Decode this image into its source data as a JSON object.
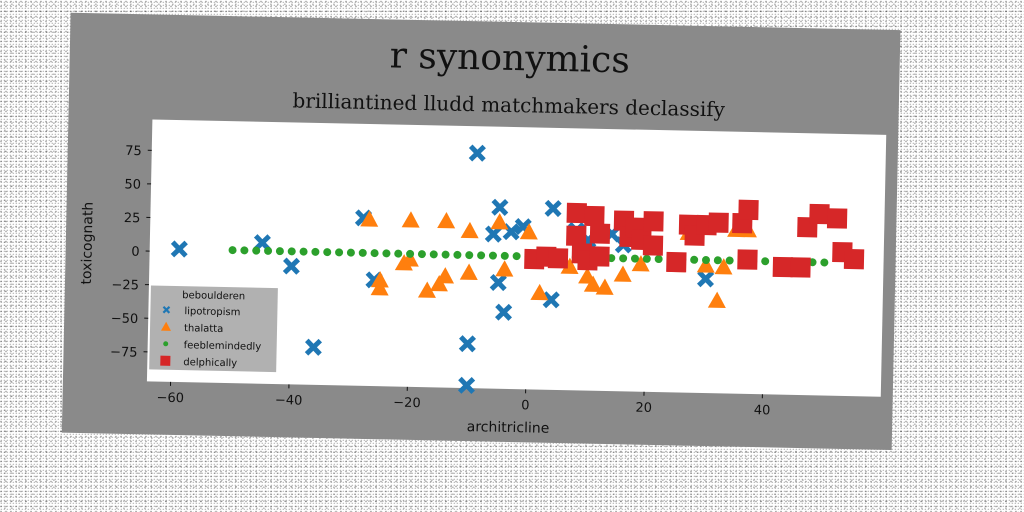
{
  "chart_data": {
    "type": "scatter",
    "title": "r synonymics",
    "subtitle": "brilliantined lludd matchmakers declassify",
    "xlabel": "architricline",
    "ylabel": "toxicognath",
    "xlim": [
      -64,
      60
    ],
    "ylim": [
      -97,
      98
    ],
    "xticks": [
      -60,
      -40,
      -20,
      0,
      20,
      40
    ],
    "yticks": [
      75,
      50,
      25,
      0,
      -25,
      -50,
      -75
    ],
    "grid": false,
    "legend": {
      "title": "beboulderen",
      "placement": "lower-left"
    },
    "series": [
      {
        "name": "lipotropism",
        "marker": "x",
        "color": "#1f77b4",
        "points": [
          [
            -59,
            2
          ],
          [
            -45,
            8
          ],
          [
            -40,
            -9
          ],
          [
            -36,
            -69
          ],
          [
            -28,
            28
          ],
          [
            -26,
            -18
          ],
          [
            -9,
            78
          ],
          [
            -10,
            -64
          ],
          [
            -10,
            -95
          ],
          [
            -6,
            18
          ],
          [
            -5,
            38
          ],
          [
            -3,
            20
          ],
          [
            -5,
            -18
          ],
          [
            -4,
            -40
          ],
          [
            -1,
            24
          ],
          [
            4,
            38
          ],
          [
            4,
            -30
          ],
          [
            8,
            22
          ],
          [
            10,
            15
          ],
          [
            14,
            20
          ],
          [
            16,
            12
          ],
          [
            30,
            -12
          ]
        ]
      },
      {
        "name": "thalatta",
        "marker": "triangle",
        "color": "#ff7f0e",
        "points": [
          [
            -27,
            27
          ],
          [
            -25,
            -18
          ],
          [
            -25,
            -24
          ],
          [
            -21,
            -5
          ],
          [
            -20,
            -2
          ],
          [
            -20,
            27
          ],
          [
            -17,
            -25
          ],
          [
            -15,
            -20
          ],
          [
            -14,
            -14
          ],
          [
            -14,
            27
          ],
          [
            -10,
            20
          ],
          [
            -10,
            -11
          ],
          [
            -5,
            27
          ],
          [
            -4,
            -8
          ],
          [
            0,
            20
          ],
          [
            2,
            -25
          ],
          [
            7,
            -5
          ],
          [
            8,
            18
          ],
          [
            10,
            -12
          ],
          [
            11,
            -18
          ],
          [
            13,
            -20
          ],
          [
            16,
            -10
          ],
          [
            17,
            20
          ],
          [
            19,
            -2
          ],
          [
            25,
            -2
          ],
          [
            27,
            22
          ],
          [
            30,
            -2
          ],
          [
            32,
            -28
          ],
          [
            33,
            -3
          ],
          [
            35,
            25
          ],
          [
            37,
            25
          ]
        ]
      },
      {
        "name": "feeblemindedly",
        "marker": "circle",
        "color": "#2ca02c",
        "points": [
          [
            -50,
            2
          ],
          [
            -48,
            2
          ],
          [
            -46,
            2
          ],
          [
            -44,
            2
          ],
          [
            -42,
            2
          ],
          [
            -40,
            2
          ],
          [
            -38,
            2
          ],
          [
            -36,
            2
          ],
          [
            -34,
            2
          ],
          [
            -32,
            2
          ],
          [
            -30,
            2
          ],
          [
            -28,
            2
          ],
          [
            -26,
            2
          ],
          [
            -24,
            2
          ],
          [
            -22,
            2
          ],
          [
            -20,
            2
          ],
          [
            -18,
            2
          ],
          [
            -16,
            2
          ],
          [
            -14,
            2
          ],
          [
            -12,
            2
          ],
          [
            -10,
            2
          ],
          [
            -8,
            2
          ],
          [
            -6,
            2
          ],
          [
            -4,
            2
          ],
          [
            -2,
            2
          ],
          [
            0,
            2
          ],
          [
            2,
            2
          ],
          [
            4,
            2
          ],
          [
            6,
            2
          ],
          [
            8,
            2
          ],
          [
            10,
            2
          ],
          [
            12,
            2
          ],
          [
            14,
            2
          ],
          [
            16,
            2
          ],
          [
            18,
            2
          ],
          [
            20,
            2
          ],
          [
            22,
            2
          ],
          [
            24,
            2
          ],
          [
            26,
            2
          ],
          [
            28,
            2
          ],
          [
            30,
            2
          ],
          [
            32,
            2
          ],
          [
            34,
            2
          ],
          [
            36,
            2
          ],
          [
            38,
            2
          ],
          [
            40,
            2
          ],
          [
            42,
            2
          ],
          [
            44,
            2
          ],
          [
            46,
            2
          ],
          [
            48,
            2
          ],
          [
            50,
            2
          ]
        ]
      },
      {
        "name": "delphically",
        "marker": "square",
        "color": "#d62728",
        "points": [
          [
            1,
            0
          ],
          [
            3,
            2
          ],
          [
            5,
            1
          ],
          [
            8,
            35
          ],
          [
            8,
            18
          ],
          [
            9,
            5
          ],
          [
            10,
            0
          ],
          [
            11,
            33
          ],
          [
            12,
            20
          ],
          [
            12,
            3
          ],
          [
            16,
            30
          ],
          [
            17,
            18
          ],
          [
            18,
            25
          ],
          [
            19,
            16
          ],
          [
            21,
            30
          ],
          [
            21,
            12
          ],
          [
            25,
            0
          ],
          [
            27,
            28
          ],
          [
            28,
            20
          ],
          [
            30,
            28
          ],
          [
            32,
            30
          ],
          [
            36,
            30
          ],
          [
            37,
            3
          ],
          [
            37,
            40
          ],
          [
            43,
            -2
          ],
          [
            46,
            -2
          ],
          [
            47,
            28
          ],
          [
            49,
            38
          ],
          [
            52,
            35
          ],
          [
            53,
            10
          ],
          [
            55,
            5
          ]
        ]
      }
    ]
  }
}
